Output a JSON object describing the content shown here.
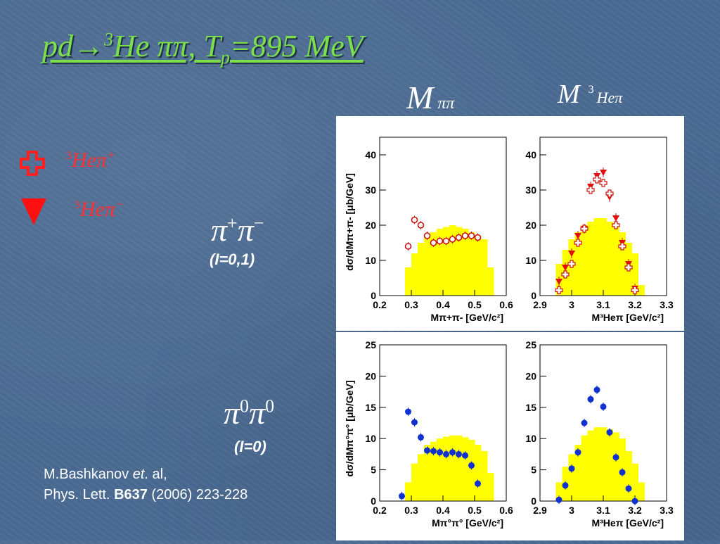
{
  "title": {
    "pre": "pd→",
    "sup": "3",
    "mid": "He ππ,    T",
    "sub": "p",
    "post": "=895 MeV"
  },
  "col_labels": {
    "left": "M",
    "left_sub": "ππ",
    "right": "M",
    "right_sup": "3",
    "right_sub": "Heπ"
  },
  "legend": [
    {
      "label": "Heπ",
      "sup": "+",
      "pre": "3",
      "color": "#ff2020",
      "icon": "open-cross-icon"
    },
    {
      "label": "Heπ",
      "sup": "−",
      "pre": "3",
      "color": "#ff2020",
      "icon": "filled-down-triangle-icon"
    }
  ],
  "channel_charged": {
    "label": "π",
    "sup1": "+",
    "sup2": "−",
    "isospin": "(I=0,1)"
  },
  "channel_neutral": {
    "label": "π",
    "sup1": "0",
    "sup2": "0",
    "isospin": "(I=0)"
  },
  "reference": {
    "author": "M.Bashkanov ",
    "etal": "et",
    "etal_rest": ". al,",
    "journal": "Phys. Lett. ",
    "volume": "B637",
    "rest": " (2006) 223-228"
  },
  "colors": {
    "title": "#7be04a",
    "hist": "#ffff00",
    "red": "#cc1010",
    "blue": "#1030d0"
  },
  "chart_data": [
    {
      "type": "bar",
      "ylabel": "dσ/dMπ+π- [μb/GeV]",
      "xlabel": "Mπ+π- [GeV/c²]",
      "xlim": [
        0.2,
        0.6
      ],
      "ylim": [
        0,
        45
      ],
      "xticks": [
        "0.2",
        "0.3",
        "0.4",
        "0.5",
        "0.6"
      ],
      "yticks": [
        "0",
        "10",
        "20",
        "30",
        "40"
      ],
      "xtick_values": [
        0.2,
        0.3,
        0.4,
        0.5,
        0.6
      ],
      "ytick_values": [
        0,
        10,
        20,
        30,
        40
      ],
      "histogram": {
        "edges": [
          0.28,
          0.3,
          0.32,
          0.34,
          0.36,
          0.38,
          0.4,
          0.42,
          0.44,
          0.46,
          0.48,
          0.5,
          0.52,
          0.54,
          0.56
        ],
        "values": [
          8,
          12,
          15,
          17,
          18,
          19,
          19.5,
          20,
          19.5,
          19,
          18,
          17,
          16,
          8
        ]
      },
      "series": [
        {
          "marker": "open-circle",
          "values_x": [
            0.29,
            0.31,
            0.33,
            0.35,
            0.37,
            0.39,
            0.41,
            0.43,
            0.45,
            0.47,
            0.49,
            0.51
          ],
          "values_y": [
            14,
            21.5,
            20,
            17,
            15,
            15.5,
            15.5,
            16,
            16.5,
            17,
            17,
            16.5
          ]
        }
      ],
      "baseline_segments": [
        [
          0.2,
          0.28
        ]
      ]
    },
    {
      "type": "bar",
      "ylabel": "",
      "xlabel": "M³Heπ [GeV/c²]",
      "xlim": [
        2.9,
        3.3
      ],
      "ylim": [
        0,
        45
      ],
      "xticks": [
        "2.9",
        "3",
        "3.1",
        "3.2",
        "3.3"
      ],
      "yticks": [
        "0",
        "10",
        "20",
        "30",
        "40"
      ],
      "xtick_values": [
        2.9,
        3.0,
        3.1,
        3.2,
        3.3
      ],
      "ytick_values": [
        0,
        10,
        20,
        30,
        40
      ],
      "histogram": {
        "edges": [
          2.95,
          2.97,
          2.99,
          3.01,
          3.03,
          3.05,
          3.07,
          3.09,
          3.11,
          3.13,
          3.15,
          3.17,
          3.19,
          3.21,
          3.23
        ],
        "values": [
          9,
          13,
          16,
          18,
          20,
          21,
          22,
          22,
          21,
          20,
          18,
          15,
          12,
          3
        ]
      },
      "series": [
        {
          "marker": "filled-down-triangle",
          "values_x": [
            2.96,
            2.98,
            3.0,
            3.02,
            3.04,
            3.06,
            3.08,
            3.1,
            3.12,
            3.14,
            3.16,
            3.18,
            3.2
          ],
          "values_y": [
            4,
            8,
            12,
            17,
            19,
            31,
            34,
            35,
            28,
            22,
            15,
            9,
            2
          ]
        },
        {
          "marker": "open-cross",
          "values_x": [
            2.96,
            2.98,
            3.0,
            3.02,
            3.04,
            3.06,
            3.08,
            3.1,
            3.12,
            3.14,
            3.16,
            3.18,
            3.2
          ],
          "values_y": [
            1.5,
            6,
            9,
            15,
            19,
            30,
            33,
            32,
            29,
            20,
            14,
            8,
            1.5
          ]
        }
      ],
      "baseline_segments": [
        [
          2.9,
          2.95
        ],
        [
          3.23,
          3.3
        ]
      ]
    },
    {
      "type": "bar",
      "ylabel": "dσ/dMπ°π° [μb/GeV]",
      "xlabel": "Mπ°π° [GeV/c²]",
      "xlim": [
        0.2,
        0.6
      ],
      "ylim": [
        0,
        25
      ],
      "xticks": [
        "0.2",
        "0.3",
        "0.4",
        "0.5",
        "0.6"
      ],
      "yticks": [
        "0",
        "5",
        "10",
        "15",
        "20",
        "25"
      ],
      "xtick_values": [
        0.2,
        0.3,
        0.4,
        0.5,
        0.6
      ],
      "ytick_values": [
        0,
        5,
        10,
        15,
        20,
        25
      ],
      "histogram": {
        "edges": [
          0.28,
          0.3,
          0.32,
          0.34,
          0.36,
          0.38,
          0.4,
          0.42,
          0.44,
          0.46,
          0.48,
          0.5,
          0.52,
          0.54,
          0.56
        ],
        "values": [
          3,
          6,
          7.5,
          9,
          9.5,
          10,
          10.3,
          10.5,
          10.5,
          10.2,
          9.8,
          9,
          8,
          4.5
        ]
      },
      "series": [
        {
          "marker": "filled-circle",
          "values_x": [
            0.27,
            0.29,
            0.31,
            0.33,
            0.35,
            0.37,
            0.39,
            0.41,
            0.43,
            0.45,
            0.47,
            0.49,
            0.51
          ],
          "values_y": [
            0.8,
            14.3,
            12.6,
            10.2,
            8.1,
            8,
            7.8,
            7.5,
            7.8,
            7.5,
            7.3,
            5.7,
            2.8
          ]
        }
      ]
    },
    {
      "type": "bar",
      "ylabel": "",
      "xlabel": "M³Heπ [GeV/c²]",
      "xlim": [
        2.9,
        3.3
      ],
      "ylim": [
        0,
        25
      ],
      "xticks": [
        "2.9",
        "3",
        "3.1",
        "3.2",
        "3.3"
      ],
      "yticks": [
        "0",
        "5",
        "10",
        "15",
        "20",
        "25"
      ],
      "xtick_values": [
        2.9,
        3.0,
        3.1,
        3.2,
        3.3
      ],
      "ytick_values": [
        0,
        5,
        10,
        15,
        20,
        25
      ],
      "histogram": {
        "edges": [
          2.95,
          2.97,
          2.99,
          3.01,
          3.03,
          3.05,
          3.07,
          3.09,
          3.11,
          3.13,
          3.15,
          3.17,
          3.19,
          3.21,
          3.23
        ],
        "values": [
          3,
          5.5,
          7.5,
          9,
          10.5,
          11.3,
          11.8,
          11.8,
          11.5,
          11,
          10,
          8,
          6,
          3
        ]
      },
      "series": [
        {
          "marker": "filled-circle",
          "values_x": [
            2.96,
            2.98,
            3.0,
            3.02,
            3.04,
            3.06,
            3.08,
            3.1,
            3.12,
            3.14,
            3.16,
            3.18,
            3.2
          ],
          "values_y": [
            0.2,
            2.5,
            5.2,
            7.8,
            12.5,
            16.3,
            17.8,
            15.1,
            11,
            7,
            4.6,
            2,
            0
          ]
        }
      ]
    }
  ]
}
